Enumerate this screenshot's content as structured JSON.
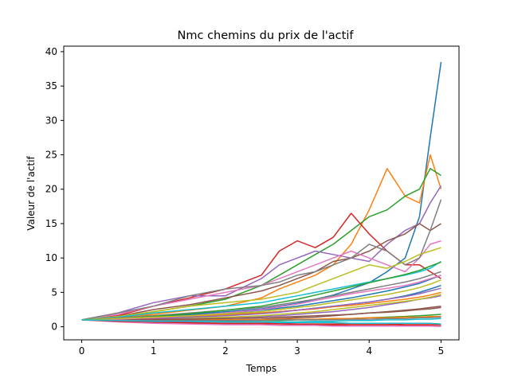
{
  "chart_data": {
    "type": "line",
    "title": "Nmc chemins du prix de l'actif",
    "xlabel": "Temps",
    "ylabel": "Valeur de l'actif",
    "xlim": [
      -0.25,
      5.25
    ],
    "ylim": [
      -1.9,
      40.8
    ],
    "xticks": [
      "0",
      "1",
      "2",
      "3",
      "4",
      "5"
    ],
    "yticks": [
      "0",
      "5",
      "10",
      "15",
      "20",
      "25",
      "30",
      "35",
      "40"
    ],
    "grid": false,
    "colors": [
      "#1f77b4",
      "#ff7f0e",
      "#2ca02c",
      "#d62728",
      "#9467bd",
      "#8c564b",
      "#e377c2",
      "#7f7f7f",
      "#bcbd22",
      "#17becf"
    ],
    "x": [
      0,
      0.5,
      1,
      1.5,
      2,
      2.5,
      2.75,
      3,
      3.25,
      3.5,
      3.75,
      4,
      4.25,
      4.5,
      4.7,
      4.85,
      5
    ],
    "series": [
      {
        "values": [
          1,
          1.2,
          1.5,
          1.8,
          2.2,
          2.6,
          3,
          3.4,
          4,
          4.6,
          5.5,
          6.4,
          8,
          10,
          16,
          27.5,
          38.5
        ]
      },
      {
        "values": [
          1,
          1.3,
          1.8,
          2.4,
          3,
          4.2,
          5.5,
          6.5,
          7.5,
          9,
          12,
          17,
          23,
          19,
          18,
          25,
          20
        ]
      },
      {
        "values": [
          1,
          1.4,
          2.2,
          3,
          4,
          6,
          7.5,
          9,
          10.5,
          12,
          14,
          16,
          17,
          19,
          20,
          23,
          22
        ]
      },
      {
        "values": [
          1,
          1.6,
          3,
          4.2,
          5.5,
          7.5,
          11,
          12.5,
          11.5,
          13,
          16.5,
          13.5,
          11,
          9,
          9,
          8,
          7
        ]
      },
      {
        "values": [
          1,
          2,
          3.5,
          4.5,
          4.5,
          7,
          9,
          10,
          11,
          10.5,
          10,
          9.5,
          12,
          14,
          15,
          18,
          20.5
        ]
      },
      {
        "values": [
          1,
          1.5,
          2.5,
          3.2,
          4.2,
          5.2,
          6,
          7,
          8,
          9.5,
          10,
          11,
          12.5,
          13.5,
          15,
          14,
          15
        ]
      },
      {
        "values": [
          1,
          1.8,
          3,
          4,
          5,
          6,
          7,
          8,
          9,
          10,
          11,
          10,
          9,
          8,
          10,
          12,
          12.5
        ]
      },
      {
        "values": [
          1,
          2,
          3,
          4.5,
          5.5,
          6,
          6.5,
          7.5,
          8,
          9,
          10,
          12,
          11,
          9,
          10,
          14,
          18.5
        ]
      },
      {
        "values": [
          1,
          1.5,
          2.2,
          3,
          3.5,
          4,
          4.5,
          5,
          6,
          7,
          8,
          9,
          8.5,
          9.5,
          10.5,
          11,
          11.5
        ]
      },
      {
        "values": [
          1,
          1.4,
          2,
          2.5,
          3,
          3.5,
          4,
          4.5,
          5,
          5.5,
          6,
          6.5,
          7,
          7.5,
          8,
          8.5,
          9.5
        ]
      },
      {
        "values": [
          1,
          1.2,
          1.4,
          1.6,
          1.8,
          2,
          2.2,
          2.4,
          2.7,
          3,
          3.3,
          3.6,
          4,
          4.5,
          5,
          5.5,
          6
        ]
      },
      {
        "values": [
          1,
          1.1,
          1.3,
          1.5,
          1.7,
          2,
          2.2,
          2.4,
          2.6,
          2.9,
          3.1,
          3.4,
          3.7,
          4,
          4.3,
          4.6,
          5
        ]
      },
      {
        "values": [
          1,
          0.9,
          0.8,
          0.8,
          0.8,
          0.9,
          0.9,
          1,
          1,
          1.1,
          1.2,
          1.3,
          1.4,
          1.5,
          1.6,
          1.7,
          1.8
        ]
      },
      {
        "values": [
          1,
          0.8,
          0.6,
          0.5,
          0.4,
          0.35,
          0.3,
          0.3,
          0.25,
          0.25,
          0.2,
          0.2,
          0.2,
          0.15,
          0.15,
          0.15,
          0.1
        ]
      },
      {
        "values": [
          1,
          1,
          1.1,
          1.2,
          1.3,
          1.5,
          1.6,
          1.8,
          2,
          2.2,
          2.5,
          2.8,
          3.2,
          3.6,
          4,
          4.2,
          4.5
        ]
      },
      {
        "values": [
          1,
          0.9,
          0.9,
          1,
          1,
          1.1,
          1.2,
          1.3,
          1.4,
          1.6,
          1.8,
          2,
          2.2,
          2.4,
          2.6,
          2.8,
          3
        ]
      },
      {
        "values": [
          1,
          0.7,
          0.5,
          0.4,
          0.3,
          0.3,
          0.2,
          0.2,
          0.2,
          0.1,
          0.1,
          0.1,
          0.1,
          0.1,
          0.1,
          0.1,
          0.05
        ]
      },
      {
        "values": [
          1,
          1.3,
          1.6,
          2,
          2.4,
          2.8,
          3.2,
          3.6,
          4,
          4.5,
          5,
          5.5,
          6,
          6.5,
          7,
          7.5,
          8
        ]
      },
      {
        "values": [
          1,
          1.1,
          1.2,
          1.3,
          1.4,
          1.6,
          1.8,
          2,
          2.2,
          2.5,
          2.8,
          3.1,
          3.4,
          3.7,
          4,
          4.3,
          4.7
        ]
      },
      {
        "values": [
          1,
          0.9,
          0.8,
          0.7,
          0.7,
          0.7,
          0.7,
          0.7,
          0.8,
          0.8,
          0.9,
          0.9,
          1,
          1,
          1.1,
          1.1,
          1.2
        ]
      },
      {
        "values": [
          1,
          1.2,
          1.4,
          1.7,
          2,
          2.4,
          2.7,
          3,
          3.4,
          3.8,
          4.2,
          4.7,
          5.2,
          5.8,
          6.3,
          6.9,
          7.5
        ]
      },
      {
        "values": [
          1,
          1,
          1,
          1,
          1,
          1,
          1.1,
          1.1,
          1.1,
          1.2,
          1.2,
          1.3,
          1.3,
          1.4,
          1.4,
          1.5,
          1.5
        ]
      },
      {
        "values": [
          1,
          1.2,
          1.5,
          1.9,
          2.4,
          3,
          3.5,
          4,
          4.6,
          5.2,
          5.8,
          6.4,
          7,
          7.6,
          8.2,
          8.8,
          9.4
        ]
      },
      {
        "values": [
          1,
          0.8,
          0.7,
          0.6,
          0.5,
          0.5,
          0.5,
          0.4,
          0.4,
          0.4,
          0.4,
          0.4,
          0.4,
          0.3,
          0.3,
          0.3,
          0.3
        ]
      },
      {
        "values": [
          1,
          1.1,
          1.2,
          1.4,
          1.6,
          1.9,
          2.1,
          2.4,
          2.7,
          3,
          3.3,
          3.6,
          4,
          4.4,
          4.8,
          5.2,
          5.6
        ]
      },
      {
        "values": [
          1,
          1,
          1.1,
          1.1,
          1.2,
          1.3,
          1.4,
          1.5,
          1.6,
          1.7,
          1.8,
          2,
          2.1,
          2.3,
          2.5,
          2.6,
          2.8
        ]
      },
      {
        "values": [
          1,
          1.1,
          1.3,
          1.6,
          2,
          2.5,
          2.9,
          3.3,
          3.8,
          4.3,
          4.8,
          5.2,
          5.6,
          6,
          6.5,
          7,
          7.5
        ]
      },
      {
        "values": [
          1,
          0.9,
          0.9,
          0.9,
          0.9,
          0.9,
          1,
          1,
          1,
          1,
          1.1,
          1.1,
          1.2,
          1.2,
          1.3,
          1.3,
          1.4
        ]
      },
      {
        "values": [
          1,
          1.2,
          1.4,
          1.6,
          1.9,
          2.2,
          2.5,
          2.8,
          3.1,
          3.5,
          3.9,
          4.3,
          4.7,
          5.2,
          5.7,
          6.2,
          6.8
        ]
      },
      {
        "values": [
          1,
          0.9,
          0.8,
          0.8,
          0.7,
          0.7,
          0.6,
          0.6,
          0.6,
          0.6,
          0.5,
          0.5,
          0.5,
          0.5,
          0.5,
          0.5,
          0.4
        ]
      }
    ]
  }
}
